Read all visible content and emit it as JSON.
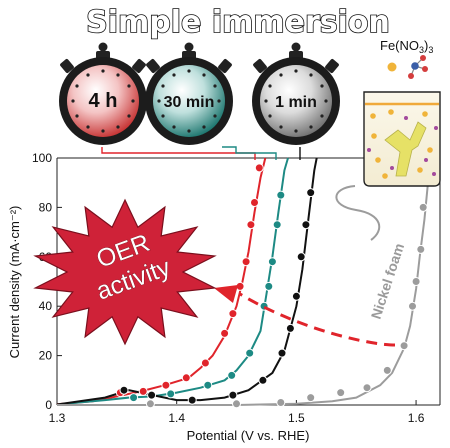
{
  "header": {
    "title": "Simple immersion"
  },
  "timers": [
    {
      "label": "4 h",
      "color": "#e8413f"
    },
    {
      "label": "30 min",
      "color": "#1d8a84"
    },
    {
      "label": "1 min",
      "color": "#8e8e8e"
    }
  ],
  "reagent": {
    "formula": "Fe(NO",
    "sub": "3",
    "paren": ")",
    "count": "3"
  },
  "callout": {
    "line1": "OER",
    "line2": "activity"
  },
  "colors": {
    "red": "#e0242b",
    "teal": "#1d8a84",
    "black": "#111111",
    "gray": "#9c9c9c",
    "burst": "#cf2238"
  },
  "chart_data": {
    "type": "line",
    "xlabel": "Potential (V vs. RHE)",
    "ylabel": "Current density (mA·cm⁻²)",
    "xlim": [
      1.3,
      1.62
    ],
    "ylim": [
      0,
      100
    ],
    "x_ticks": [
      "1.3",
      "1.4",
      "1.5",
      "1.6"
    ],
    "y_ticks": [
      "0",
      "20",
      "40",
      "60",
      "80",
      "100"
    ],
    "series": [
      {
        "color": "#e0242b",
        "line": [
          [
            1.3,
            0.3
          ],
          [
            1.33,
            1.5
          ],
          [
            1.35,
            3.5
          ],
          [
            1.37,
            5.5
          ],
          [
            1.39,
            8
          ],
          [
            1.41,
            11
          ],
          [
            1.42,
            15
          ],
          [
            1.43,
            20
          ],
          [
            1.44,
            28
          ],
          [
            1.45,
            40
          ],
          [
            1.455,
            50
          ],
          [
            1.46,
            62
          ],
          [
            1.465,
            78
          ],
          [
            1.47,
            92
          ],
          [
            1.474,
            100
          ]
        ],
        "markers": [
          [
            1.353,
            5
          ],
          [
            1.372,
            5.5
          ],
          [
            1.391,
            8
          ],
          [
            1.408,
            11
          ],
          [
            1.424,
            17
          ],
          [
            1.44,
            29
          ],
          [
            1.447,
            37
          ],
          [
            1.453,
            48
          ],
          [
            1.458,
            58
          ],
          [
            1.462,
            73
          ],
          [
            1.465,
            82
          ],
          [
            1.469,
            96
          ]
        ]
      },
      {
        "color": "#1d8a84",
        "line": [
          [
            1.3,
            0.2
          ],
          [
            1.34,
            2
          ],
          [
            1.36,
            3
          ],
          [
            1.38,
            3.5
          ],
          [
            1.4,
            5
          ],
          [
            1.42,
            7
          ],
          [
            1.44,
            10
          ],
          [
            1.45,
            14
          ],
          [
            1.46,
            20
          ],
          [
            1.47,
            30
          ],
          [
            1.475,
            45
          ],
          [
            1.48,
            60
          ],
          [
            1.485,
            78
          ],
          [
            1.49,
            95
          ],
          [
            1.493,
            100
          ]
        ],
        "markers": [
          [
            1.364,
            3
          ],
          [
            1.395,
            4.5
          ],
          [
            1.426,
            8
          ],
          [
            1.446,
            12
          ],
          [
            1.461,
            21
          ],
          [
            1.473,
            40
          ],
          [
            1.477,
            48
          ],
          [
            1.48,
            58
          ],
          [
            1.484,
            73
          ],
          [
            1.487,
            85
          ]
        ]
      },
      {
        "color": "#111111",
        "line": [
          [
            1.3,
            0.2
          ],
          [
            1.34,
            3
          ],
          [
            1.36,
            6
          ],
          [
            1.38,
            4
          ],
          [
            1.4,
            2
          ],
          [
            1.42,
            2
          ],
          [
            1.44,
            3
          ],
          [
            1.46,
            6
          ],
          [
            1.48,
            13
          ],
          [
            1.49,
            22
          ],
          [
            1.5,
            40
          ],
          [
            1.505,
            55
          ],
          [
            1.51,
            75
          ],
          [
            1.515,
            95
          ],
          [
            1.517,
            100
          ]
        ],
        "markers": [
          [
            1.356,
            6
          ],
          [
            1.379,
            4
          ],
          [
            1.413,
            2
          ],
          [
            1.447,
            4
          ],
          [
            1.472,
            10
          ],
          [
            1.488,
            21
          ],
          [
            1.495,
            31
          ],
          [
            1.5,
            44
          ],
          [
            1.504,
            60
          ],
          [
            1.508,
            73
          ],
          [
            1.512,
            86
          ]
        ]
      },
      {
        "color": "#9c9c9c",
        "line": [
          [
            1.3,
            0
          ],
          [
            1.45,
            0
          ],
          [
            1.5,
            0.5
          ],
          [
            1.53,
            1.5
          ],
          [
            1.55,
            3
          ],
          [
            1.57,
            8
          ],
          [
            1.58,
            13
          ],
          [
            1.59,
            23
          ],
          [
            1.595,
            32
          ],
          [
            1.6,
            47
          ],
          [
            1.603,
            60
          ],
          [
            1.607,
            75
          ],
          [
            1.61,
            90
          ],
          [
            1.612,
            100
          ]
        ],
        "markers": [
          [
            1.378,
            0.5
          ],
          [
            1.45,
            0.5
          ],
          [
            1.487,
            1
          ],
          [
            1.512,
            3
          ],
          [
            1.537,
            5
          ],
          [
            1.559,
            7
          ],
          [
            1.576,
            14
          ],
          [
            1.59,
            24
          ],
          [
            1.597,
            40
          ],
          [
            1.6,
            50
          ],
          [
            1.604,
            63
          ],
          [
            1.606,
            80
          ]
        ]
      }
    ],
    "annotations": [
      "Nickel foam"
    ]
  }
}
